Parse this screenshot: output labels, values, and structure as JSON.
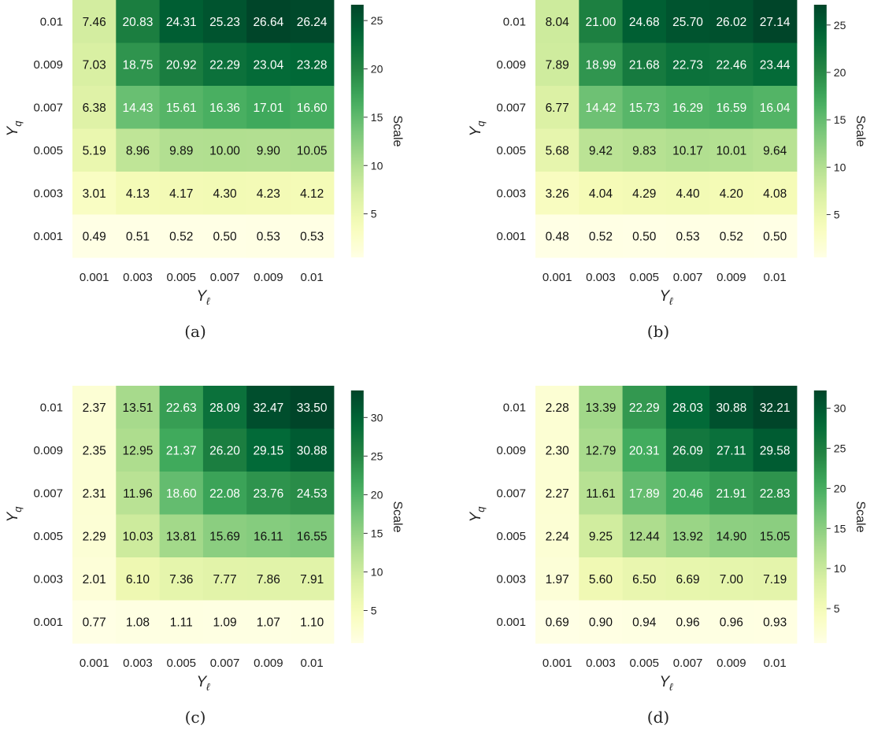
{
  "figure": {
    "panel_captions": [
      "(a)",
      "(b)",
      "(c)",
      "(d)"
    ]
  },
  "chart_data": [
    {
      "type": "heatmap",
      "caption": "(a)",
      "xlabel": "Y_ℓ",
      "ylabel": "Y_q",
      "x_ticks": [
        "0.001",
        "0.003",
        "0.005",
        "0.007",
        "0.009",
        "0.01"
      ],
      "y_ticks": [
        "0.01",
        "0.009",
        "0.007",
        "0.005",
        "0.003",
        "0.001"
      ],
      "values": [
        [
          7.46,
          20.83,
          24.31,
          25.23,
          26.64,
          26.24
        ],
        [
          7.03,
          18.75,
          20.92,
          22.29,
          23.04,
          23.28
        ],
        [
          6.38,
          14.43,
          15.61,
          16.36,
          17.01,
          16.6
        ],
        [
          5.19,
          8.96,
          9.89,
          10.0,
          9.9,
          10.05
        ],
        [
          3.01,
          4.13,
          4.17,
          4.3,
          4.23,
          4.12
        ],
        [
          0.49,
          0.51,
          0.52,
          0.5,
          0.53,
          0.53
        ]
      ],
      "colorbar": {
        "label": "Scale",
        "ticks": [
          5,
          10,
          15,
          20,
          25
        ],
        "vmin": 0.49,
        "vmax": 26.64
      },
      "colormap": "Greens"
    },
    {
      "type": "heatmap",
      "caption": "(b)",
      "xlabel": "Y_ℓ",
      "ylabel": "Y_q",
      "x_ticks": [
        "0.001",
        "0.003",
        "0.005",
        "0.007",
        "0.009",
        "0.01"
      ],
      "y_ticks": [
        "0.01",
        "0.009",
        "0.007",
        "0.005",
        "0.003",
        "0.001"
      ],
      "values": [
        [
          8.04,
          21.0,
          24.68,
          25.7,
          26.02,
          27.14
        ],
        [
          7.89,
          18.99,
          21.68,
          22.73,
          22.46,
          23.44
        ],
        [
          6.77,
          14.42,
          15.73,
          16.29,
          16.59,
          16.04
        ],
        [
          5.68,
          9.42,
          9.83,
          10.17,
          10.01,
          9.64
        ],
        [
          3.26,
          4.04,
          4.29,
          4.4,
          4.2,
          4.08
        ],
        [
          0.48,
          0.52,
          0.5,
          0.53,
          0.52,
          0.5
        ]
      ],
      "colorbar": {
        "label": "Scale",
        "ticks": [
          5,
          10,
          15,
          20,
          25
        ],
        "vmin": 0.48,
        "vmax": 27.14
      },
      "colormap": "Greens"
    },
    {
      "type": "heatmap",
      "caption": "(c)",
      "xlabel": "Y_ℓ",
      "ylabel": "Y_q",
      "x_ticks": [
        "0.001",
        "0.003",
        "0.005",
        "0.007",
        "0.009",
        "0.01"
      ],
      "y_ticks": [
        "0.01",
        "0.009",
        "0.007",
        "0.005",
        "0.003",
        "0.001"
      ],
      "values": [
        [
          2.37,
          13.51,
          22.63,
          28.09,
          32.47,
          33.5
        ],
        [
          2.35,
          12.95,
          21.37,
          26.2,
          29.15,
          30.88
        ],
        [
          2.31,
          11.96,
          18.6,
          22.08,
          23.76,
          24.53
        ],
        [
          2.29,
          10.03,
          13.81,
          15.69,
          16.11,
          16.55
        ],
        [
          2.01,
          6.1,
          7.36,
          7.77,
          7.86,
          7.91
        ],
        [
          0.77,
          1.08,
          1.11,
          1.09,
          1.07,
          1.1
        ]
      ],
      "colorbar": {
        "label": "Scale",
        "ticks": [
          5,
          10,
          15,
          20,
          25,
          30
        ],
        "vmin": 0.77,
        "vmax": 33.5
      },
      "colormap": "Greens"
    },
    {
      "type": "heatmap",
      "caption": "(d)",
      "xlabel": "Y_ℓ",
      "ylabel": "Y_q",
      "x_ticks": [
        "0.001",
        "0.003",
        "0.005",
        "0.007",
        "0.009",
        "0.01"
      ],
      "y_ticks": [
        "0.01",
        "0.009",
        "0.007",
        "0.005",
        "0.003",
        "0.001"
      ],
      "values": [
        [
          2.28,
          13.39,
          22.29,
          28.03,
          30.88,
          32.21
        ],
        [
          2.3,
          12.79,
          20.31,
          26.09,
          27.11,
          29.58
        ],
        [
          2.27,
          11.61,
          17.89,
          20.46,
          21.91,
          22.83
        ],
        [
          2.24,
          9.25,
          12.44,
          13.92,
          14.9,
          15.05
        ],
        [
          1.97,
          5.6,
          6.5,
          6.69,
          7.0,
          7.19
        ],
        [
          0.69,
          0.9,
          0.94,
          0.96,
          0.96,
          0.93
        ]
      ],
      "colorbar": {
        "label": "Scale",
        "ticks": [
          5,
          10,
          15,
          20,
          25,
          30
        ],
        "vmin": 0.69,
        "vmax": 32.21
      },
      "colormap": "Greens"
    }
  ]
}
